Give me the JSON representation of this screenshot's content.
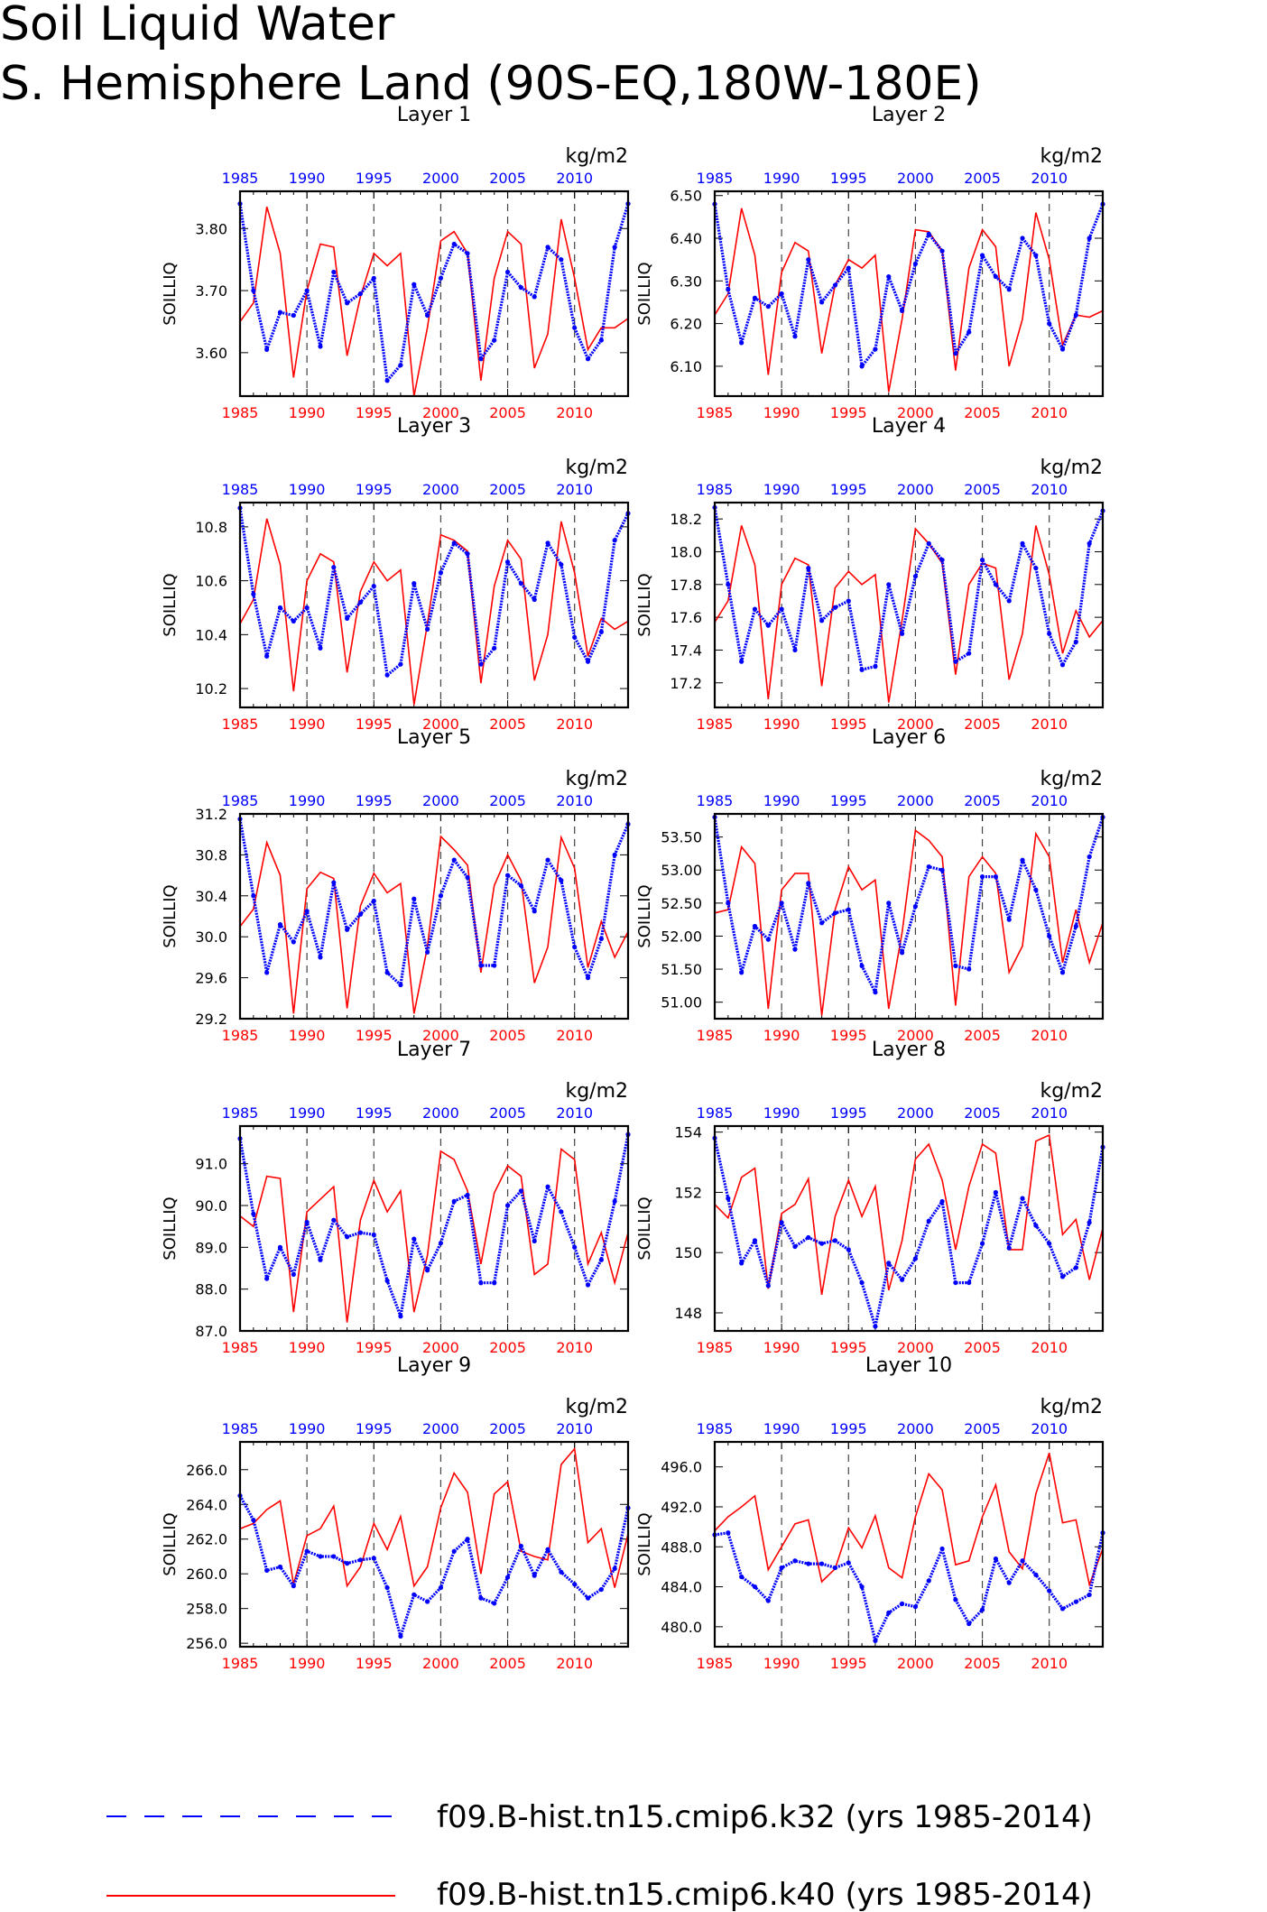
{
  "title": "Soil Liquid Water",
  "subtitle": "S. Hemisphere Land (90S-EQ,180W-180E)",
  "unit_label": "kg/m2",
  "ylabel": "SOILLIQ",
  "legend": [
    {
      "label": "f09.B-hist.tn15.cmip6.k32 (yrs 1985-2014)",
      "color": "#0000ff",
      "style": "dashed"
    },
    {
      "label": "f09.B-hist.tn15.cmip6.k40 (yrs 1985-2014)",
      "color": "#ff0000",
      "style": "solid"
    }
  ],
  "colors": {
    "k32": "#0000ff",
    "k40": "#ff0000",
    "axes": "#000000"
  },
  "chart_data": [
    {
      "type": "line",
      "title": "Layer 1",
      "x": {
        "start": 1985,
        "end": 2014
      },
      "xticks": [
        1985,
        1990,
        1995,
        2000,
        2005,
        2010
      ],
      "ylim": [
        3.53,
        3.86
      ],
      "yticks": [
        3.6,
        3.7,
        3.8
      ],
      "yfmt": 2,
      "series": [
        {
          "name": "f09.B-hist.tn15.cmip6.k32",
          "values": [
            3.84,
            3.7,
            3.605,
            3.665,
            3.66,
            3.7,
            3.61,
            3.73,
            3.68,
            3.695,
            3.72,
            3.555,
            3.58,
            3.71,
            3.66,
            3.72,
            3.775,
            3.76,
            3.59,
            3.62,
            3.73,
            3.705,
            3.69,
            3.77,
            3.75,
            3.64,
            3.59,
            3.62,
            3.77,
            3.84
          ]
        },
        {
          "name": "f09.B-hist.tn15.cmip6.k40",
          "values": [
            3.65,
            3.68,
            3.835,
            3.76,
            3.56,
            3.7,
            3.775,
            3.77,
            3.595,
            3.69,
            3.76,
            3.74,
            3.76,
            3.53,
            3.64,
            3.78,
            3.795,
            3.76,
            3.555,
            3.72,
            3.795,
            3.775,
            3.575,
            3.63,
            3.815,
            3.72,
            3.605,
            3.64,
            3.64,
            3.655
          ]
        }
      ]
    },
    {
      "type": "line",
      "title": "Layer 2",
      "x": {
        "start": 1985,
        "end": 2014
      },
      "xticks": [
        1985,
        1990,
        1995,
        2000,
        2005,
        2010
      ],
      "ylim": [
        6.03,
        6.51
      ],
      "yticks": [
        6.1,
        6.2,
        6.3,
        6.4,
        6.5
      ],
      "yfmt": 2,
      "series": [
        {
          "name": "f09.B-hist.tn15.cmip6.k32",
          "values": [
            6.48,
            6.28,
            6.155,
            6.26,
            6.24,
            6.27,
            6.17,
            6.35,
            6.25,
            6.29,
            6.33,
            6.1,
            6.14,
            6.31,
            6.23,
            6.34,
            6.41,
            6.37,
            6.13,
            6.18,
            6.36,
            6.31,
            6.28,
            6.4,
            6.36,
            6.2,
            6.14,
            6.22,
            6.4,
            6.48
          ]
        },
        {
          "name": "f09.B-hist.tn15.cmip6.k40",
          "values": [
            6.22,
            6.27,
            6.47,
            6.36,
            6.08,
            6.32,
            6.39,
            6.37,
            6.13,
            6.29,
            6.35,
            6.33,
            6.36,
            6.04,
            6.21,
            6.42,
            6.415,
            6.37,
            6.09,
            6.33,
            6.42,
            6.38,
            6.1,
            6.21,
            6.46,
            6.35,
            6.15,
            6.22,
            6.215,
            6.23
          ]
        }
      ]
    },
    {
      "type": "line",
      "title": "Layer 3",
      "x": {
        "start": 1985,
        "end": 2014
      },
      "xticks": [
        1985,
        1990,
        1995,
        2000,
        2005,
        2010
      ],
      "ylim": [
        10.13,
        10.89
      ],
      "yticks": [
        10.2,
        10.4,
        10.6,
        10.8
      ],
      "yfmt": 1,
      "series": [
        {
          "name": "f09.B-hist.tn15.cmip6.k32",
          "values": [
            10.87,
            10.55,
            10.32,
            10.5,
            10.45,
            10.5,
            10.35,
            10.65,
            10.46,
            10.52,
            10.58,
            10.25,
            10.29,
            10.59,
            10.42,
            10.63,
            10.74,
            10.7,
            10.29,
            10.35,
            10.67,
            10.59,
            10.53,
            10.74,
            10.66,
            10.39,
            10.3,
            10.41,
            10.75,
            10.85
          ]
        },
        {
          "name": "f09.B-hist.tn15.cmip6.k40",
          "values": [
            10.44,
            10.53,
            10.83,
            10.66,
            10.19,
            10.6,
            10.7,
            10.67,
            10.26,
            10.56,
            10.67,
            10.6,
            10.64,
            10.14,
            10.44,
            10.77,
            10.75,
            10.71,
            10.22,
            10.58,
            10.75,
            10.68,
            10.23,
            10.4,
            10.82,
            10.63,
            10.32,
            10.46,
            10.42,
            10.45
          ]
        }
      ]
    },
    {
      "type": "line",
      "title": "Layer 4",
      "x": {
        "start": 1985,
        "end": 2014
      },
      "xticks": [
        1985,
        1990,
        1995,
        2000,
        2005,
        2010
      ],
      "ylim": [
        17.05,
        18.3
      ],
      "yticks": [
        17.2,
        17.4,
        17.6,
        17.8,
        18.0,
        18.2
      ],
      "yfmt": 1,
      "series": [
        {
          "name": "f09.B-hist.tn15.cmip6.k32",
          "values": [
            18.27,
            17.8,
            17.33,
            17.65,
            17.55,
            17.65,
            17.4,
            17.9,
            17.58,
            17.66,
            17.7,
            17.28,
            17.3,
            17.8,
            17.5,
            17.85,
            18.05,
            17.95,
            17.33,
            17.38,
            17.95,
            17.8,
            17.7,
            18.05,
            17.9,
            17.5,
            17.31,
            17.45,
            18.05,
            18.25
          ]
        },
        {
          "name": "f09.B-hist.tn15.cmip6.k40",
          "values": [
            17.57,
            17.7,
            18.16,
            17.92,
            17.1,
            17.8,
            17.96,
            17.92,
            17.18,
            17.78,
            17.88,
            17.8,
            17.86,
            17.08,
            17.58,
            18.14,
            18.05,
            17.93,
            17.25,
            17.8,
            17.93,
            17.9,
            17.22,
            17.5,
            18.16,
            17.86,
            17.38,
            17.64,
            17.48,
            17.58
          ]
        }
      ]
    },
    {
      "type": "line",
      "title": "Layer 5",
      "x": {
        "start": 1985,
        "end": 2014
      },
      "xticks": [
        1985,
        1990,
        1995,
        2000,
        2005,
        2010
      ],
      "ylim": [
        29.2,
        31.2
      ],
      "yticks": [
        29.2,
        29.6,
        30.0,
        30.4,
        30.8,
        31.2
      ],
      "yfmt": 1,
      "series": [
        {
          "name": "f09.B-hist.tn15.cmip6.k32",
          "values": [
            31.15,
            30.4,
            29.65,
            30.12,
            29.95,
            30.25,
            29.8,
            30.53,
            30.07,
            30.22,
            30.35,
            29.65,
            29.53,
            30.37,
            29.85,
            30.4,
            30.75,
            30.58,
            29.72,
            29.72,
            30.6,
            30.5,
            30.25,
            30.75,
            30.55,
            29.9,
            29.6,
            29.98,
            30.8,
            31.1
          ]
        },
        {
          "name": "f09.B-hist.tn15.cmip6.k40",
          "values": [
            30.1,
            30.27,
            30.92,
            30.6,
            29.25,
            30.47,
            30.63,
            30.57,
            29.3,
            30.3,
            30.62,
            30.43,
            30.52,
            29.25,
            29.9,
            30.98,
            30.85,
            30.7,
            29.65,
            30.5,
            30.8,
            30.55,
            29.55,
            29.9,
            30.97,
            30.67,
            29.7,
            30.15,
            29.8,
            30.05
          ]
        }
      ]
    },
    {
      "type": "line",
      "title": "Layer 6",
      "x": {
        "start": 1985,
        "end": 2014
      },
      "xticks": [
        1985,
        1990,
        1995,
        2000,
        2005,
        2010
      ],
      "ylim": [
        50.75,
        53.85
      ],
      "yticks": [
        51.0,
        51.5,
        52.0,
        52.5,
        53.0,
        53.5
      ],
      "yfmt": 2,
      "series": [
        {
          "name": "f09.B-hist.tn15.cmip6.k32",
          "values": [
            53.8,
            52.5,
            51.45,
            52.15,
            51.95,
            52.5,
            51.8,
            52.8,
            52.2,
            52.35,
            52.4,
            51.55,
            51.15,
            52.5,
            51.75,
            52.45,
            53.05,
            53.0,
            51.55,
            51.5,
            52.9,
            52.9,
            52.25,
            53.15,
            52.7,
            52.0,
            51.45,
            52.15,
            53.2,
            53.8
          ]
        },
        {
          "name": "f09.B-hist.tn15.cmip6.k40",
          "values": [
            52.35,
            52.4,
            53.35,
            53.1,
            50.9,
            52.7,
            52.95,
            52.95,
            50.8,
            52.4,
            53.05,
            52.7,
            52.85,
            50.9,
            52.05,
            53.6,
            53.45,
            53.2,
            50.95,
            52.9,
            53.2,
            52.95,
            51.45,
            51.85,
            53.55,
            53.2,
            51.6,
            52.4,
            51.6,
            52.2
          ]
        }
      ]
    },
    {
      "type": "line",
      "title": "Layer 7",
      "x": {
        "start": 1985,
        "end": 2014
      },
      "xticks": [
        1985,
        1990,
        1995,
        2000,
        2005,
        2010
      ],
      "ylim": [
        87.0,
        91.9
      ],
      "yticks": [
        87.0,
        88.0,
        89.0,
        90.0,
        91.0
      ],
      "yfmt": 1,
      "series": [
        {
          "name": "f09.B-hist.tn15.cmip6.k32",
          "values": [
            91.6,
            89.8,
            88.25,
            89.0,
            88.35,
            89.6,
            88.7,
            89.65,
            89.25,
            89.35,
            89.3,
            88.2,
            87.35,
            89.2,
            88.45,
            89.1,
            90.1,
            90.25,
            88.15,
            88.15,
            90.0,
            90.35,
            89.15,
            90.45,
            89.85,
            89.0,
            88.1,
            88.7,
            90.1,
            91.7
          ]
        },
        {
          "name": "f09.B-hist.tn15.cmip6.k40",
          "values": [
            89.75,
            89.5,
            90.7,
            90.65,
            87.45,
            89.85,
            90.15,
            90.45,
            87.2,
            89.65,
            90.6,
            89.85,
            90.35,
            87.45,
            88.8,
            91.3,
            91.1,
            90.35,
            88.6,
            90.3,
            90.95,
            90.7,
            88.35,
            88.6,
            91.35,
            91.1,
            88.6,
            89.35,
            88.15,
            89.35
          ]
        }
      ]
    },
    {
      "type": "line",
      "title": "Layer 8",
      "x": {
        "start": 1985,
        "end": 2014
      },
      "xticks": [
        1985,
        1990,
        1995,
        2000,
        2005,
        2010
      ],
      "ylim": [
        147.4,
        154.2
      ],
      "yticks": [
        148,
        150,
        152,
        154
      ],
      "yfmt": 0,
      "series": [
        {
          "name": "f09.B-hist.tn15.cmip6.k32",
          "values": [
            153.8,
            151.8,
            149.65,
            150.4,
            148.9,
            151.0,
            150.2,
            150.5,
            150.3,
            150.4,
            150.1,
            149.0,
            147.55,
            149.65,
            149.1,
            149.8,
            151.05,
            151.7,
            149.0,
            149.0,
            150.3,
            152.0,
            150.15,
            151.8,
            150.9,
            150.3,
            149.2,
            149.5,
            151.0,
            153.5
          ]
        },
        {
          "name": "f09.B-hist.tn15.cmip6.k40",
          "values": [
            151.6,
            151.15,
            152.5,
            152.8,
            148.8,
            151.3,
            151.6,
            152.45,
            148.6,
            151.2,
            152.4,
            151.2,
            152.2,
            148.75,
            150.4,
            153.1,
            153.6,
            152.4,
            150.1,
            152.2,
            153.6,
            153.3,
            150.1,
            150.1,
            153.7,
            153.9,
            150.6,
            151.1,
            149.1,
            150.8
          ]
        }
      ]
    },
    {
      "type": "line",
      "title": "Layer 9",
      "x": {
        "start": 1985,
        "end": 2014
      },
      "xticks": [
        1985,
        1990,
        1995,
        2000,
        2005,
        2010
      ],
      "ylim": [
        255.8,
        267.6
      ],
      "yticks": [
        256.0,
        258.0,
        260.0,
        262.0,
        264.0,
        266.0
      ],
      "yfmt": 1,
      "series": [
        {
          "name": "f09.B-hist.tn15.cmip6.k32",
          "values": [
            264.5,
            263.1,
            260.2,
            260.4,
            259.3,
            261.3,
            261.0,
            261.0,
            260.6,
            260.8,
            260.9,
            259.2,
            256.4,
            258.8,
            258.4,
            259.2,
            261.3,
            262.0,
            258.6,
            258.3,
            259.8,
            261.6,
            259.9,
            261.4,
            260.1,
            259.4,
            258.6,
            259.1,
            260.3,
            263.8
          ]
        },
        {
          "name": "f09.B-hist.tn15.cmip6.k40",
          "values": [
            262.6,
            262.9,
            263.7,
            264.2,
            259.4,
            262.2,
            262.6,
            263.9,
            259.3,
            260.4,
            262.9,
            261.4,
            263.3,
            259.3,
            260.4,
            263.8,
            265.8,
            264.7,
            260.0,
            264.6,
            265.3,
            261.3,
            261.0,
            260.8,
            266.3,
            267.2,
            261.8,
            262.6,
            259.2,
            262.3
          ]
        }
      ]
    },
    {
      "type": "line",
      "title": "Layer 10",
      "x": {
        "start": 1985,
        "end": 2014
      },
      "xticks": [
        1985,
        1990,
        1995,
        2000,
        2005,
        2010
      ],
      "ylim": [
        478.0,
        498.5
      ],
      "yticks": [
        480.0,
        484.0,
        488.0,
        492.0,
        496.0
      ],
      "yfmt": 1,
      "series": [
        {
          "name": "f09.B-hist.tn15.cmip6.k32",
          "values": [
            489.2,
            489.4,
            485.0,
            484.0,
            482.6,
            485.9,
            486.6,
            486.3,
            486.3,
            485.9,
            486.4,
            484.0,
            478.6,
            481.4,
            482.3,
            482.0,
            484.6,
            487.8,
            482.7,
            480.3,
            481.7,
            486.8,
            484.4,
            486.6,
            485.2,
            483.6,
            481.8,
            482.5,
            483.2,
            489.4
          ]
        },
        {
          "name": "f09.B-hist.tn15.cmip6.k40",
          "values": [
            489.6,
            491.0,
            492.0,
            493.1,
            485.7,
            488.0,
            490.3,
            490.7,
            484.5,
            485.8,
            489.9,
            487.9,
            491.1,
            485.9,
            484.9,
            491.0,
            495.3,
            493.7,
            486.2,
            486.6,
            491.0,
            494.2,
            487.5,
            485.8,
            493.3,
            497.4,
            490.4,
            490.7,
            484.2,
            487.8
          ]
        }
      ]
    }
  ]
}
